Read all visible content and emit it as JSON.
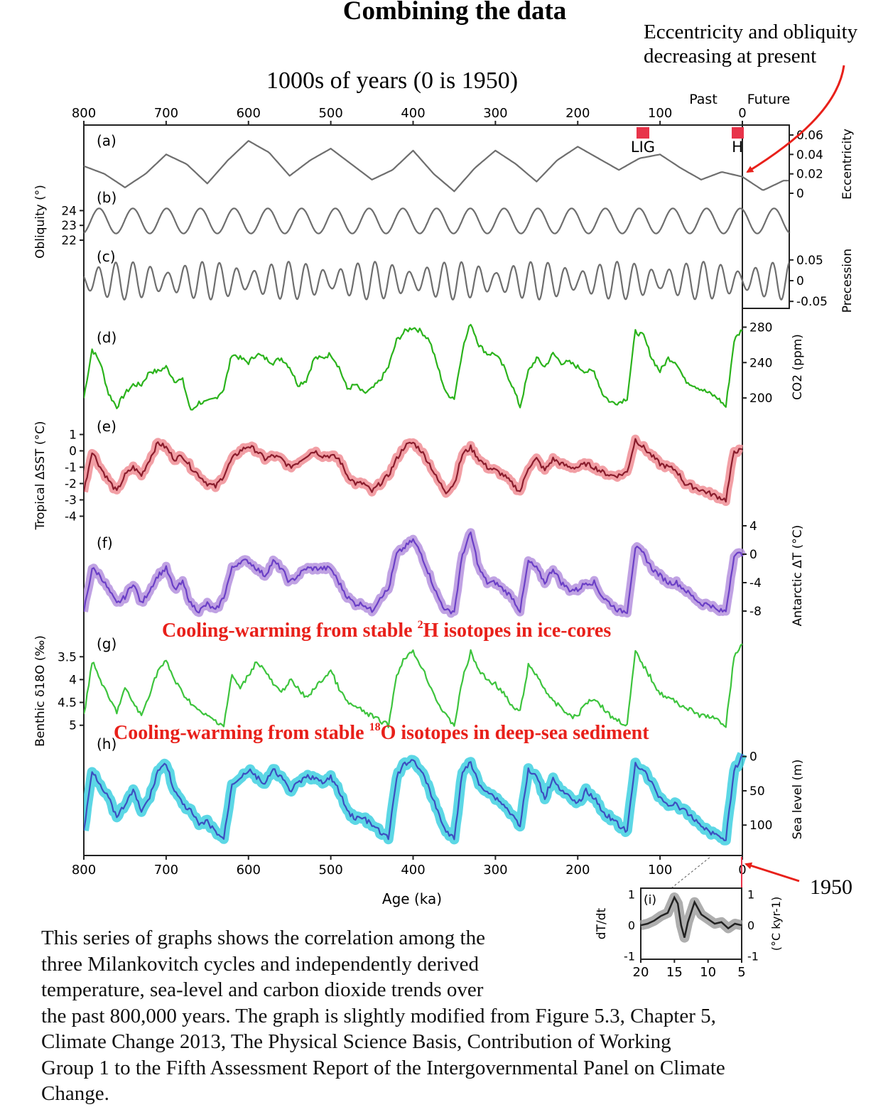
{
  "title": "Combining the data",
  "top_axis_title": "1000s of years (0 is 1950)",
  "past_label": "Past",
  "future_label": "Future",
  "bottom_axis_title": "Age (ka)",
  "x_ticks": [
    "800",
    "700",
    "600",
    "500",
    "400",
    "300",
    "200",
    "100",
    "0"
  ],
  "annotations": {
    "ecc_note_line1": "Eccentricity and obliquity",
    "ecc_note_line2": "decreasing at present",
    "year_1950": "1950",
    "cooling_2h_pre": "Cooling-warming from stable ",
    "cooling_2h_sup": "2",
    "cooling_2h_post": "H isotopes in ice-cores",
    "cooling_18o_pre": "Cooling-warming from stable ",
    "cooling_18o_sup": "18",
    "cooling_18o_post": "O isotopes in deep-sea sediment",
    "lig_label": "LIG",
    "h_label": "H",
    "red_color": "#e8201a"
  },
  "caption": {
    "line1": "This series of graphs shows the correlation among the",
    "line2": "three Milankovitch cycles and independently derived",
    "line3": "temperature, sea-level and carbon dioxide trends over",
    "line4": "the past 800,000 years.  The graph is slightly modified from Figure 5.3, Chapter 5,",
    "line5": "Climate Change 2013, The Physical Science Basis, Contribution of Working",
    "line6": "Group 1 to the Fifth Assessment Report of the Intergovernmental Panel on Climate",
    "line7": "Change."
  },
  "chart_data": {
    "type": "line",
    "x_unit": "ka",
    "xlim": [
      800,
      -57
    ],
    "panels": [
      {
        "id": "a",
        "label": "(a)",
        "axis_label": "Eccentricity",
        "axis_side": "right",
        "ticks": [
          "0.06",
          "0.04",
          "0.02",
          "0"
        ],
        "color": "#6e6e6e",
        "ylim": [
          0,
          0.06
        ],
        "x": [
          800,
          775,
          750,
          725,
          700,
          675,
          650,
          625,
          600,
          575,
          550,
          525,
          500,
          475,
          450,
          425,
          400,
          375,
          350,
          325,
          300,
          275,
          250,
          225,
          200,
          175,
          150,
          125,
          100,
          75,
          50,
          25,
          0,
          -25,
          -50
        ],
        "values": [
          0.028,
          0.02,
          0.006,
          0.02,
          0.04,
          0.03,
          0.01,
          0.034,
          0.054,
          0.042,
          0.018,
          0.034,
          0.046,
          0.03,
          0.014,
          0.024,
          0.044,
          0.02,
          0.002,
          0.026,
          0.044,
          0.03,
          0.012,
          0.034,
          0.048,
          0.036,
          0.024,
          0.036,
          0.04,
          0.026,
          0.014,
          0.022,
          0.017,
          0.003,
          0.013
        ]
      },
      {
        "id": "b",
        "label": "(b)",
        "axis_label": "Obliquity (°)",
        "axis_side": "left",
        "ticks": [
          "24",
          "23",
          "22"
        ],
        "color": "#6e6e6e",
        "ylim": [
          22,
          24.5
        ],
        "period_ka": 41,
        "center": 23.3,
        "amplitude": 0.85
      },
      {
        "id": "c",
        "label": "(c)",
        "axis_label": "Precession",
        "axis_side": "right",
        "ticks": [
          "0.05",
          "0",
          "-0.05"
        ],
        "color": "#6e6e6e",
        "ylim": [
          -0.06,
          0.06
        ],
        "period_ka": 21
      },
      {
        "id": "d",
        "label": "(d)",
        "axis_label": "CO2 (ppm)",
        "axis_side": "right",
        "ticks": [
          "280",
          "240",
          "200"
        ],
        "color": "#2bb31c",
        "ylim": [
          180,
          290
        ],
        "x": [
          800,
          790,
          780,
          770,
          760,
          750,
          740,
          730,
          720,
          710,
          700,
          690,
          680,
          670,
          660,
          650,
          640,
          630,
          620,
          610,
          600,
          590,
          580,
          570,
          560,
          550,
          540,
          530,
          520,
          510,
          500,
          490,
          480,
          470,
          460,
          450,
          440,
          430,
          420,
          410,
          400,
          390,
          380,
          370,
          360,
          350,
          340,
          330,
          320,
          310,
          300,
          290,
          280,
          270,
          260,
          250,
          240,
          230,
          220,
          210,
          200,
          190,
          180,
          170,
          160,
          150,
          140,
          130,
          120,
          110,
          100,
          90,
          80,
          70,
          60,
          50,
          40,
          30,
          20,
          10,
          0
        ],
        "values": [
          200,
          255,
          240,
          205,
          190,
          205,
          215,
          215,
          230,
          230,
          235,
          220,
          220,
          185,
          195,
          195,
          200,
          210,
          250,
          245,
          240,
          250,
          245,
          240,
          245,
          235,
          215,
          220,
          245,
          245,
          250,
          235,
          210,
          215,
          205,
          210,
          220,
          235,
          265,
          275,
          280,
          275,
          265,
          235,
          205,
          200,
          255,
          285,
          260,
          250,
          250,
          235,
          215,
          190,
          230,
          245,
          235,
          250,
          240,
          240,
          235,
          230,
          230,
          205,
          195,
          195,
          200,
          275,
          270,
          245,
          230,
          245,
          240,
          220,
          215,
          210,
          205,
          200,
          190,
          265,
          278
        ]
      },
      {
        "id": "e",
        "label": "(e)",
        "axis_label": "Tropical ΔSST (°C)",
        "axis_side": "left",
        "ticks": [
          "1",
          "0",
          "-1",
          "-2",
          "-3",
          "-4"
        ],
        "color": "#8a1c2c",
        "band_color": "#f08e95",
        "ylim": [
          -4.5,
          1.5
        ],
        "x": [
          800,
          790,
          780,
          770,
          760,
          750,
          740,
          730,
          720,
          710,
          700,
          690,
          680,
          670,
          660,
          650,
          640,
          630,
          620,
          610,
          600,
          590,
          580,
          570,
          560,
          550,
          540,
          530,
          520,
          510,
          500,
          490,
          480,
          470,
          460,
          450,
          440,
          430,
          420,
          410,
          400,
          390,
          380,
          370,
          360,
          350,
          340,
          330,
          320,
          310,
          300,
          290,
          280,
          270,
          260,
          250,
          240,
          230,
          220,
          210,
          200,
          190,
          180,
          170,
          160,
          150,
          140,
          130,
          120,
          110,
          100,
          90,
          80,
          70,
          60,
          50,
          40,
          30,
          20,
          10,
          0
        ],
        "values": [
          -2.5,
          0.0,
          -1.0,
          -1.8,
          -2.5,
          -1.5,
          -1.0,
          -1.5,
          -0.5,
          0.5,
          0.2,
          -0.5,
          -0.3,
          -1.0,
          -1.5,
          -2.0,
          -2.2,
          -1.5,
          -0.5,
          0.0,
          0.3,
          0.0,
          -0.5,
          -0.3,
          -0.5,
          -1.0,
          -0.7,
          -0.3,
          0.0,
          -0.3,
          -0.3,
          -0.5,
          -1.5,
          -2.0,
          -2.0,
          -2.5,
          -2.0,
          -1.5,
          -0.5,
          0.3,
          0.5,
          0.0,
          -0.8,
          -1.8,
          -2.5,
          -2.0,
          -0.2,
          0.2,
          -0.5,
          -1.0,
          -1.2,
          -1.5,
          -2.0,
          -2.5,
          -1.0,
          -0.5,
          -1.2,
          -0.5,
          -0.8,
          -1.0,
          -1.0,
          -0.8,
          -1.0,
          -1.3,
          -1.5,
          -1.5,
          -1.3,
          0.7,
          0.2,
          -0.3,
          -0.8,
          -1.0,
          -1.2,
          -2.0,
          -2.2,
          -2.4,
          -2.6,
          -2.8,
          -3.0,
          0.0,
          0.0
        ]
      },
      {
        "id": "f",
        "label": "(f)",
        "axis_label": "Antarctic ΔT (°C)",
        "axis_side": "right",
        "ticks": [
          "4",
          "0",
          "-4",
          "-8"
        ],
        "color": "#6b3fc6",
        "band_color": "#b592de",
        "ylim": [
          -10,
          4
        ],
        "x": [
          800,
          790,
          780,
          770,
          760,
          750,
          740,
          730,
          720,
          710,
          700,
          690,
          680,
          670,
          660,
          650,
          640,
          630,
          620,
          610,
          600,
          590,
          580,
          570,
          560,
          550,
          540,
          530,
          520,
          510,
          500,
          490,
          480,
          470,
          460,
          450,
          440,
          430,
          420,
          410,
          400,
          390,
          380,
          370,
          360,
          350,
          340,
          330,
          320,
          310,
          300,
          290,
          280,
          270,
          260,
          250,
          240,
          230,
          220,
          210,
          200,
          190,
          180,
          170,
          160,
          150,
          140,
          130,
          120,
          110,
          100,
          90,
          80,
          70,
          60,
          50,
          40,
          30,
          20,
          10,
          0
        ],
        "values": [
          -8,
          -2,
          -3,
          -5,
          -7,
          -6,
          -4,
          -7,
          -5,
          -3,
          -2,
          -5,
          -4,
          -7,
          -8,
          -7,
          -8,
          -6,
          -2,
          -1,
          -1,
          -2,
          -3,
          -1,
          -2,
          -4,
          -3,
          -2,
          -2,
          -2,
          -2,
          -4,
          -6,
          -7,
          -7,
          -8,
          -6,
          -5,
          0,
          1,
          2,
          0,
          -3,
          -6,
          -8,
          -8,
          0,
          3,
          -2,
          -4,
          -4,
          -5,
          -6,
          -8,
          -1,
          -2,
          -4,
          -2,
          -4,
          -5,
          -5,
          -4,
          -4,
          -6,
          -7,
          -8,
          -8,
          1,
          0,
          -2,
          -3,
          -4,
          -4,
          -5,
          -6,
          -7,
          -7,
          -8,
          -8,
          0,
          0
        ]
      },
      {
        "id": "g",
        "label": "(g)",
        "axis_label": "Benthic δ18O (‰)",
        "axis_side": "left",
        "ticks": [
          "3.5",
          "4",
          "4.5",
          "5"
        ],
        "color": "#3dc43d",
        "ylim": [
          3.2,
          5.3
        ],
        "inverted": true,
        "x": [
          800,
          790,
          780,
          770,
          760,
          750,
          740,
          730,
          720,
          710,
          700,
          690,
          680,
          670,
          660,
          650,
          640,
          630,
          620,
          610,
          600,
          590,
          580,
          570,
          560,
          550,
          540,
          530,
          520,
          510,
          500,
          490,
          480,
          470,
          460,
          450,
          440,
          430,
          420,
          410,
          400,
          390,
          380,
          370,
          360,
          350,
          340,
          330,
          320,
          310,
          300,
          290,
          280,
          270,
          260,
          250,
          240,
          230,
          220,
          210,
          200,
          190,
          180,
          170,
          160,
          150,
          140,
          130,
          120,
          110,
          100,
          90,
          80,
          70,
          60,
          50,
          40,
          30,
          20,
          10,
          0
        ],
        "values": [
          4.8,
          3.6,
          4.0,
          4.4,
          4.7,
          4.2,
          4.5,
          4.8,
          4.3,
          3.8,
          3.6,
          4.0,
          4.3,
          4.5,
          4.7,
          4.8,
          4.9,
          5.0,
          3.9,
          4.2,
          3.9,
          3.6,
          3.8,
          4.1,
          4.3,
          4.0,
          4.2,
          4.4,
          4.2,
          4.0,
          3.8,
          4.2,
          4.5,
          4.6,
          4.7,
          4.8,
          4.9,
          5.0,
          3.9,
          3.5,
          3.4,
          3.7,
          4.1,
          4.5,
          4.8,
          5.0,
          4.0,
          3.4,
          3.8,
          4.0,
          4.1,
          4.3,
          4.6,
          4.7,
          3.7,
          3.9,
          4.2,
          4.5,
          4.6,
          4.8,
          4.8,
          4.5,
          4.4,
          4.6,
          4.8,
          4.9,
          5.0,
          3.4,
          3.7,
          4.0,
          4.3,
          4.4,
          4.5,
          4.6,
          4.7,
          4.8,
          4.8,
          4.9,
          5.0,
          3.5,
          3.2
        ]
      },
      {
        "id": "h",
        "label": "(h)",
        "axis_label": "Sea level (m)",
        "axis_side": "right",
        "ticks": [
          "0",
          "50",
          "100"
        ],
        "color": "#3c4fc0",
        "band_color": "#3fd0e0",
        "ylim": [
          135,
          -10
        ],
        "inverted": true,
        "x": [
          800,
          790,
          780,
          770,
          760,
          750,
          740,
          730,
          720,
          710,
          700,
          690,
          680,
          670,
          660,
          650,
          640,
          630,
          620,
          610,
          600,
          590,
          580,
          570,
          560,
          550,
          540,
          530,
          520,
          510,
          500,
          490,
          480,
          470,
          460,
          450,
          440,
          430,
          420,
          410,
          400,
          390,
          380,
          370,
          360,
          350,
          340,
          330,
          320,
          310,
          300,
          290,
          280,
          270,
          260,
          250,
          240,
          230,
          220,
          210,
          200,
          190,
          180,
          170,
          160,
          150,
          140,
          130,
          120,
          110,
          100,
          90,
          80,
          70,
          60,
          50,
          40,
          30,
          20,
          10,
          0
        ],
        "values": [
          110,
          20,
          40,
          60,
          90,
          70,
          50,
          80,
          60,
          20,
          10,
          50,
          70,
          80,
          100,
          95,
          110,
          120,
          40,
          30,
          20,
          30,
          40,
          20,
          30,
          50,
          40,
          30,
          30,
          40,
          30,
          50,
          80,
          90,
          90,
          100,
          110,
          120,
          30,
          10,
          5,
          20,
          50,
          80,
          110,
          120,
          20,
          10,
          40,
          50,
          60,
          70,
          85,
          100,
          20,
          30,
          60,
          30,
          50,
          60,
          70,
          50,
          60,
          80,
          90,
          100,
          110,
          10,
          20,
          40,
          60,
          70,
          70,
          80,
          90,
          100,
          110,
          115,
          120,
          20,
          0
        ]
      }
    ],
    "inset": {
      "id": "i",
      "label": "(i)",
      "left_axis_label": "dT/dt",
      "right_axis_label": "(°C kyr-1)",
      "x_ticks": [
        "20",
        "15",
        "10",
        "5"
      ],
      "y_ticks": [
        "1",
        "0",
        "-1"
      ],
      "xlim": [
        20,
        5
      ],
      "ylim": [
        -1.1,
        1.2
      ],
      "color": "#222222",
      "band_color": "#9a9a9a",
      "x": [
        20,
        19,
        18,
        17,
        16,
        15,
        14.5,
        14,
        13.5,
        13,
        12,
        11,
        10,
        9,
        8,
        7,
        6,
        5
      ],
      "values": [
        0.0,
        0.05,
        0.15,
        0.3,
        0.4,
        0.9,
        0.7,
        0.0,
        -0.4,
        0.1,
        0.75,
        0.35,
        0.2,
        0.05,
        0.1,
        -0.1,
        0.05,
        0.0
      ]
    }
  }
}
